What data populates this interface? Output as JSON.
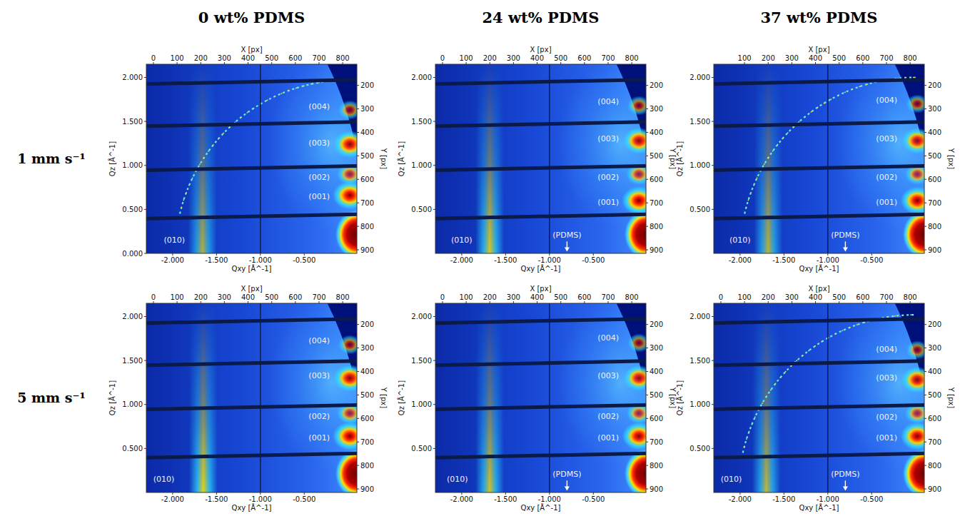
{
  "column_titles": [
    "0 wt% PDMS",
    "24 wt% PDMS",
    "37 wt% PDMS"
  ],
  "row_labels": [
    "1 mm s⁻¹",
    "5 mm s⁻¹"
  ],
  "chart_data": [
    {
      "type": "heatmap",
      "x_label": "Qxy [Å^-1]",
      "y_label": "Qz [Å^-1]",
      "x2_label": "X [px]",
      "y2_label": "Y [px]",
      "xlim": [
        -2.3,
        0.1
      ],
      "ylim": [
        0,
        2.15
      ],
      "xticks": [
        {
          "value": -2,
          "label": "-2.000"
        },
        {
          "value": -1.5,
          "label": "-1.500"
        },
        {
          "value": -1,
          "label": "-1.000"
        },
        {
          "value": -0.5,
          "label": "-0.500"
        }
      ],
      "yticks": [
        {
          "value": 0,
          "label": "0.000"
        },
        {
          "value": 0.5,
          "label": "0.500"
        },
        {
          "value": 1,
          "label": "1.000"
        },
        {
          "value": 1.5,
          "label": "1.500"
        },
        {
          "value": 2,
          "label": "2.000"
        }
      ],
      "x2lim": [
        -30,
        860
      ],
      "x2ticks": [
        0,
        100,
        200,
        300,
        400,
        500,
        600,
        700,
        800
      ],
      "y2lim": [
        915,
        110
      ],
      "y2ticks": [
        200,
        300,
        400,
        500,
        600,
        700,
        800,
        900
      ],
      "gaps_qz": [
        0.42,
        0.97,
        1.47,
        1.95
      ],
      "gap_qxy": -1.0,
      "ring_q": 1.97,
      "annotations": [
        {
          "text": "(004)",
          "qxy": -0.33,
          "qz": 1.66,
          "peak_qxy": 0.02,
          "peak_qz": 1.63,
          "intensity": 0.35,
          "marker": "spot"
        },
        {
          "text": "(003)",
          "qxy": -0.33,
          "qz": 1.25,
          "peak_qxy": 0.02,
          "peak_qz": 1.24,
          "intensity": 0.9,
          "marker": "spot"
        },
        {
          "text": "(002)",
          "qxy": -0.33,
          "qz": 0.86,
          "peak_qxy": 0.02,
          "peak_qz": 0.9,
          "intensity": 0.5,
          "marker": "spot"
        },
        {
          "text": "(001)",
          "qxy": -0.33,
          "qz": 0.64,
          "peak_qxy": 0.02,
          "peak_qz": 0.66,
          "intensity": 1.0,
          "marker": "spot"
        },
        {
          "text": "(010)",
          "qxy": -1.98,
          "qz": 0.15,
          "peak_qxy": -1.66,
          "peak_qz": 0,
          "intensity": 0.55,
          "marker": "band"
        }
      ]
    },
    {
      "type": "heatmap",
      "x_label": "Qxy [Å^-1]",
      "y_label": "Qz [Å^-1]",
      "x2_label": "X [px]",
      "y2_label": "Y [px]",
      "xlim": [
        -2.3,
        0.1
      ],
      "ylim": [
        0,
        2.15
      ],
      "xticks": [
        {
          "value": -2,
          "label": "-2.000"
        },
        {
          "value": -1.5,
          "label": "-1.500"
        },
        {
          "value": -1,
          "label": "-1.000"
        },
        {
          "value": -0.5,
          "label": "-0.500"
        }
      ],
      "yticks": [
        {
          "value": 0.5,
          "label": "0.500"
        },
        {
          "value": 1,
          "label": "1.000"
        },
        {
          "value": 1.5,
          "label": "1.500"
        },
        {
          "value": 2,
          "label": "2.000"
        }
      ],
      "x2lim": [
        -30,
        860
      ],
      "x2ticks": [
        0,
        100,
        200,
        300,
        400,
        500,
        600,
        700,
        800
      ],
      "y2lim": [
        915,
        110
      ],
      "y2ticks": [
        200,
        300,
        400,
        500,
        600,
        700,
        800,
        900
      ],
      "gaps_qz": [
        0.42,
        0.97,
        1.47,
        1.95
      ],
      "gap_qxy": -1.0,
      "annotations": [
        {
          "text": "(004)",
          "qxy": -0.33,
          "qz": 1.72,
          "peak_qxy": 0.02,
          "peak_qz": 1.68,
          "intensity": 0.35,
          "marker": "spot"
        },
        {
          "text": "(003)",
          "qxy": -0.33,
          "qz": 1.3,
          "peak_qxy": 0.02,
          "peak_qz": 1.28,
          "intensity": 0.85,
          "marker": "spot"
        },
        {
          "text": "(002)",
          "qxy": -0.33,
          "qz": 0.86,
          "peak_qxy": 0.02,
          "peak_qz": 0.9,
          "intensity": 0.5,
          "marker": "spot"
        },
        {
          "text": "(001)",
          "qxy": -0.33,
          "qz": 0.58,
          "peak_qxy": 0.02,
          "peak_qz": 0.6,
          "intensity": 1.0,
          "marker": "spot"
        },
        {
          "text": "(010)",
          "qxy": -2.0,
          "qz": 0.15,
          "peak_qxy": -1.68,
          "peak_qz": 0,
          "intensity": 0.8,
          "marker": "band"
        },
        {
          "text": "(PDMS)",
          "qxy": -0.8,
          "qz": 0.2,
          "peak_qxy": -0.8,
          "peak_qz": 0.02,
          "marker": "arrow"
        }
      ]
    },
    {
      "type": "heatmap",
      "x_label": "Qxy [Å^-1]",
      "y_label": "Qz [Å^-1]",
      "x2_label": "X [px]",
      "y2_label": "Y [px]",
      "xlim": [
        -2.3,
        0.1
      ],
      "ylim": [
        0,
        2.15
      ],
      "xticks": [
        {
          "value": -2,
          "label": "-2.000"
        },
        {
          "value": -1.5,
          "label": "-1.500"
        },
        {
          "value": -1,
          "label": "-1.000"
        },
        {
          "value": -0.5,
          "label": "-0.500"
        }
      ],
      "yticks": [
        {
          "value": 0.5,
          "label": "0.500"
        },
        {
          "value": 1,
          "label": "1.000"
        },
        {
          "value": 1.5,
          "label": "1.500"
        },
        {
          "value": 2,
          "label": "2.000"
        }
      ],
      "x2lim": [
        -30,
        860
      ],
      "x2ticks": [
        100,
        200,
        300,
        400,
        500,
        600,
        700,
        800
      ],
      "y2lim": [
        915,
        110
      ],
      "y2ticks": [
        200,
        300,
        400,
        500,
        600,
        700,
        800,
        900
      ],
      "gaps_qz": [
        0.42,
        0.97,
        1.47,
        1.95
      ],
      "gap_qxy": -1.0,
      "ring_q": 2.0,
      "annotations": [
        {
          "text": "(004)",
          "qxy": -0.33,
          "qz": 1.74,
          "peak_qxy": 0.02,
          "peak_qz": 1.7,
          "intensity": 0.3,
          "marker": "spot"
        },
        {
          "text": "(003)",
          "qxy": -0.33,
          "qz": 1.3,
          "peak_qxy": 0.02,
          "peak_qz": 1.28,
          "intensity": 0.8,
          "marker": "spot"
        },
        {
          "text": "(002)",
          "qxy": -0.33,
          "qz": 0.86,
          "peak_qxy": 0.02,
          "peak_qz": 0.9,
          "intensity": 0.45,
          "marker": "spot"
        },
        {
          "text": "(001)",
          "qxy": -0.33,
          "qz": 0.58,
          "peak_qxy": 0.02,
          "peak_qz": 0.6,
          "intensity": 0.95,
          "marker": "spot"
        },
        {
          "text": "(010)",
          "qxy": -2.0,
          "qz": 0.15,
          "peak_qxy": -1.68,
          "peak_qz": 0,
          "intensity": 0.6,
          "marker": "band"
        },
        {
          "text": "(PDMS)",
          "qxy": -0.8,
          "qz": 0.2,
          "peak_qxy": -0.8,
          "peak_qz": 0.02,
          "marker": "arrow"
        }
      ]
    },
    {
      "type": "heatmap",
      "x_label": "Qxy [Å^-1]",
      "y_label": "Qz [Å^-1]",
      "x2_label": "X [px]",
      "y2_label": "Y [px]",
      "xlim": [
        -2.3,
        0.1
      ],
      "ylim": [
        0,
        2.15
      ],
      "xticks": [
        {
          "value": -2,
          "label": "-2.000"
        },
        {
          "value": -1.5,
          "label": "-1.500"
        },
        {
          "value": -1,
          "label": "-1.000"
        },
        {
          "value": -0.5,
          "label": "-0.500"
        }
      ],
      "yticks": [
        {
          "value": 0.5,
          "label": "0.500"
        },
        {
          "value": 1,
          "label": "1.000"
        },
        {
          "value": 1.5,
          "label": "1.500"
        },
        {
          "value": 2,
          "label": "2.000"
        }
      ],
      "x2lim": [
        -30,
        860
      ],
      "x2ticks": [
        0,
        100,
        200,
        300,
        400,
        500,
        600,
        700,
        800
      ],
      "y2lim": [
        915,
        110
      ],
      "y2ticks": [
        200,
        300,
        400,
        500,
        600,
        700,
        800,
        900
      ],
      "gaps_qz": [
        0.42,
        0.97,
        1.47,
        1.95
      ],
      "gap_qxy": -1.0,
      "annotations": [
        {
          "text": "(004)",
          "qxy": -0.33,
          "qz": 1.72,
          "peak_qxy": 0.02,
          "peak_qz": 1.68,
          "intensity": 0.35,
          "marker": "spot"
        },
        {
          "text": "(003)",
          "qxy": -0.33,
          "qz": 1.32,
          "peak_qxy": 0.02,
          "peak_qz": 1.3,
          "intensity": 0.9,
          "marker": "spot"
        },
        {
          "text": "(002)",
          "qxy": -0.33,
          "qz": 0.86,
          "peak_qxy": 0.02,
          "peak_qz": 0.9,
          "intensity": 0.5,
          "marker": "spot"
        },
        {
          "text": "(001)",
          "qxy": -0.33,
          "qz": 0.62,
          "peak_qxy": 0.02,
          "peak_qz": 0.64,
          "intensity": 1.0,
          "marker": "spot"
        },
        {
          "text": "(010)",
          "qxy": -2.1,
          "qz": 0.15,
          "peak_qxy": -1.65,
          "peak_qz": 0,
          "intensity": 0.9,
          "marker": "band"
        }
      ]
    },
    {
      "type": "heatmap",
      "x_label": "Qxy [Å^-1]",
      "y_label": "Qz [Å^-1]",
      "x2_label": "X [px]",
      "y2_label": "Y [px]",
      "xlim": [
        -2.3,
        0.1
      ],
      "ylim": [
        0,
        2.15
      ],
      "xticks": [
        {
          "value": -2,
          "label": "-2.000"
        },
        {
          "value": -1.5,
          "label": "-1.500"
        },
        {
          "value": -1,
          "label": "-1.000"
        },
        {
          "value": -0.5,
          "label": "-0.500"
        }
      ],
      "yticks": [
        {
          "value": 0.5,
          "label": "0.500"
        },
        {
          "value": 1,
          "label": "1.000"
        },
        {
          "value": 1.5,
          "label": "1.500"
        },
        {
          "value": 2,
          "label": "2.000"
        }
      ],
      "x2lim": [
        -30,
        860
      ],
      "x2ticks": [
        0,
        100,
        200,
        300,
        400,
        500,
        600,
        700,
        800
      ],
      "y2lim": [
        915,
        110
      ],
      "y2ticks": [
        200,
        300,
        400,
        500,
        600,
        700,
        800,
        900
      ],
      "gaps_qz": [
        0.42,
        0.97,
        1.47,
        1.95
      ],
      "gap_qxy": -1.0,
      "annotations": [
        {
          "text": "(004)",
          "qxy": -0.33,
          "qz": 1.75,
          "peak_qxy": 0.02,
          "peak_qz": 1.7,
          "intensity": 0.3,
          "marker": "spot"
        },
        {
          "text": "(003)",
          "qxy": -0.33,
          "qz": 1.32,
          "peak_qxy": 0.02,
          "peak_qz": 1.3,
          "intensity": 0.8,
          "marker": "spot"
        },
        {
          "text": "(002)",
          "qxy": -0.33,
          "qz": 0.86,
          "peak_qxy": 0.02,
          "peak_qz": 0.9,
          "intensity": 0.45,
          "marker": "spot"
        },
        {
          "text": "(001)",
          "qxy": -0.33,
          "qz": 0.62,
          "peak_qxy": 0.02,
          "peak_qz": 0.64,
          "intensity": 0.95,
          "marker": "spot"
        },
        {
          "text": "(010)",
          "qxy": -2.05,
          "qz": 0.15,
          "peak_qxy": -1.68,
          "peak_qz": 0,
          "intensity": 0.75,
          "marker": "band"
        },
        {
          "text": "(PDMS)",
          "qxy": -0.8,
          "qz": 0.2,
          "peak_qxy": -0.8,
          "peak_qz": 0.02,
          "marker": "arrow"
        }
      ]
    },
    {
      "type": "heatmap",
      "x_label": "Qxy [Å^-1]",
      "y_label": "Qz [Å^-1]",
      "x2_label": "X [px]",
      "y2_label": "Y [px]",
      "xlim": [
        -2.3,
        0.1
      ],
      "ylim": [
        0,
        2.15
      ],
      "xticks": [
        {
          "value": -2,
          "label": "-2.000"
        },
        {
          "value": -1.5,
          "label": "-1.500"
        },
        {
          "value": -1,
          "label": "-1.000"
        },
        {
          "value": -0.5,
          "label": "-0.500"
        }
      ],
      "yticks": [
        {
          "value": 0.5,
          "label": "0.500"
        },
        {
          "value": 1,
          "label": "1.000"
        },
        {
          "value": 1.5,
          "label": "1.500"
        },
        {
          "value": 2,
          "label": "2.000"
        }
      ],
      "x2lim": [
        -30,
        860
      ],
      "x2ticks": [
        0,
        100,
        200,
        300,
        400,
        500,
        600,
        700,
        800
      ],
      "y2lim": [
        915,
        110
      ],
      "y2ticks": [
        200,
        300,
        400,
        500,
        600,
        700,
        800,
        900
      ],
      "gaps_qz": [
        0.42,
        0.97,
        1.47,
        1.95
      ],
      "gap_qxy": -1.0,
      "ring_q": 2.02,
      "annotations": [
        {
          "text": "(004)",
          "qxy": -0.33,
          "qz": 1.62,
          "peak_qxy": 0.02,
          "peak_qz": 1.62,
          "intensity": 0.3,
          "marker": "spot"
        },
        {
          "text": "(003)",
          "qxy": -0.33,
          "qz": 1.3,
          "peak_qxy": 0.02,
          "peak_qz": 1.28,
          "intensity": 0.85,
          "marker": "spot"
        },
        {
          "text": "(002)",
          "qxy": -0.33,
          "qz": 0.85,
          "peak_qxy": 0.02,
          "peak_qz": 0.9,
          "intensity": 0.45,
          "marker": "spot"
        },
        {
          "text": "(001)",
          "qxy": -0.33,
          "qz": 0.62,
          "peak_qxy": 0.02,
          "peak_qz": 0.64,
          "intensity": 0.95,
          "marker": "spot"
        },
        {
          "text": "(010)",
          "qxy": -2.1,
          "qz": 0.15,
          "peak_qxy": -1.7,
          "peak_qz": 0,
          "intensity": 0.65,
          "marker": "band"
        },
        {
          "text": "(PDMS)",
          "qxy": -0.8,
          "qz": 0.2,
          "peak_qxy": -0.8,
          "peak_qz": 0.02,
          "marker": "arrow"
        }
      ]
    }
  ]
}
